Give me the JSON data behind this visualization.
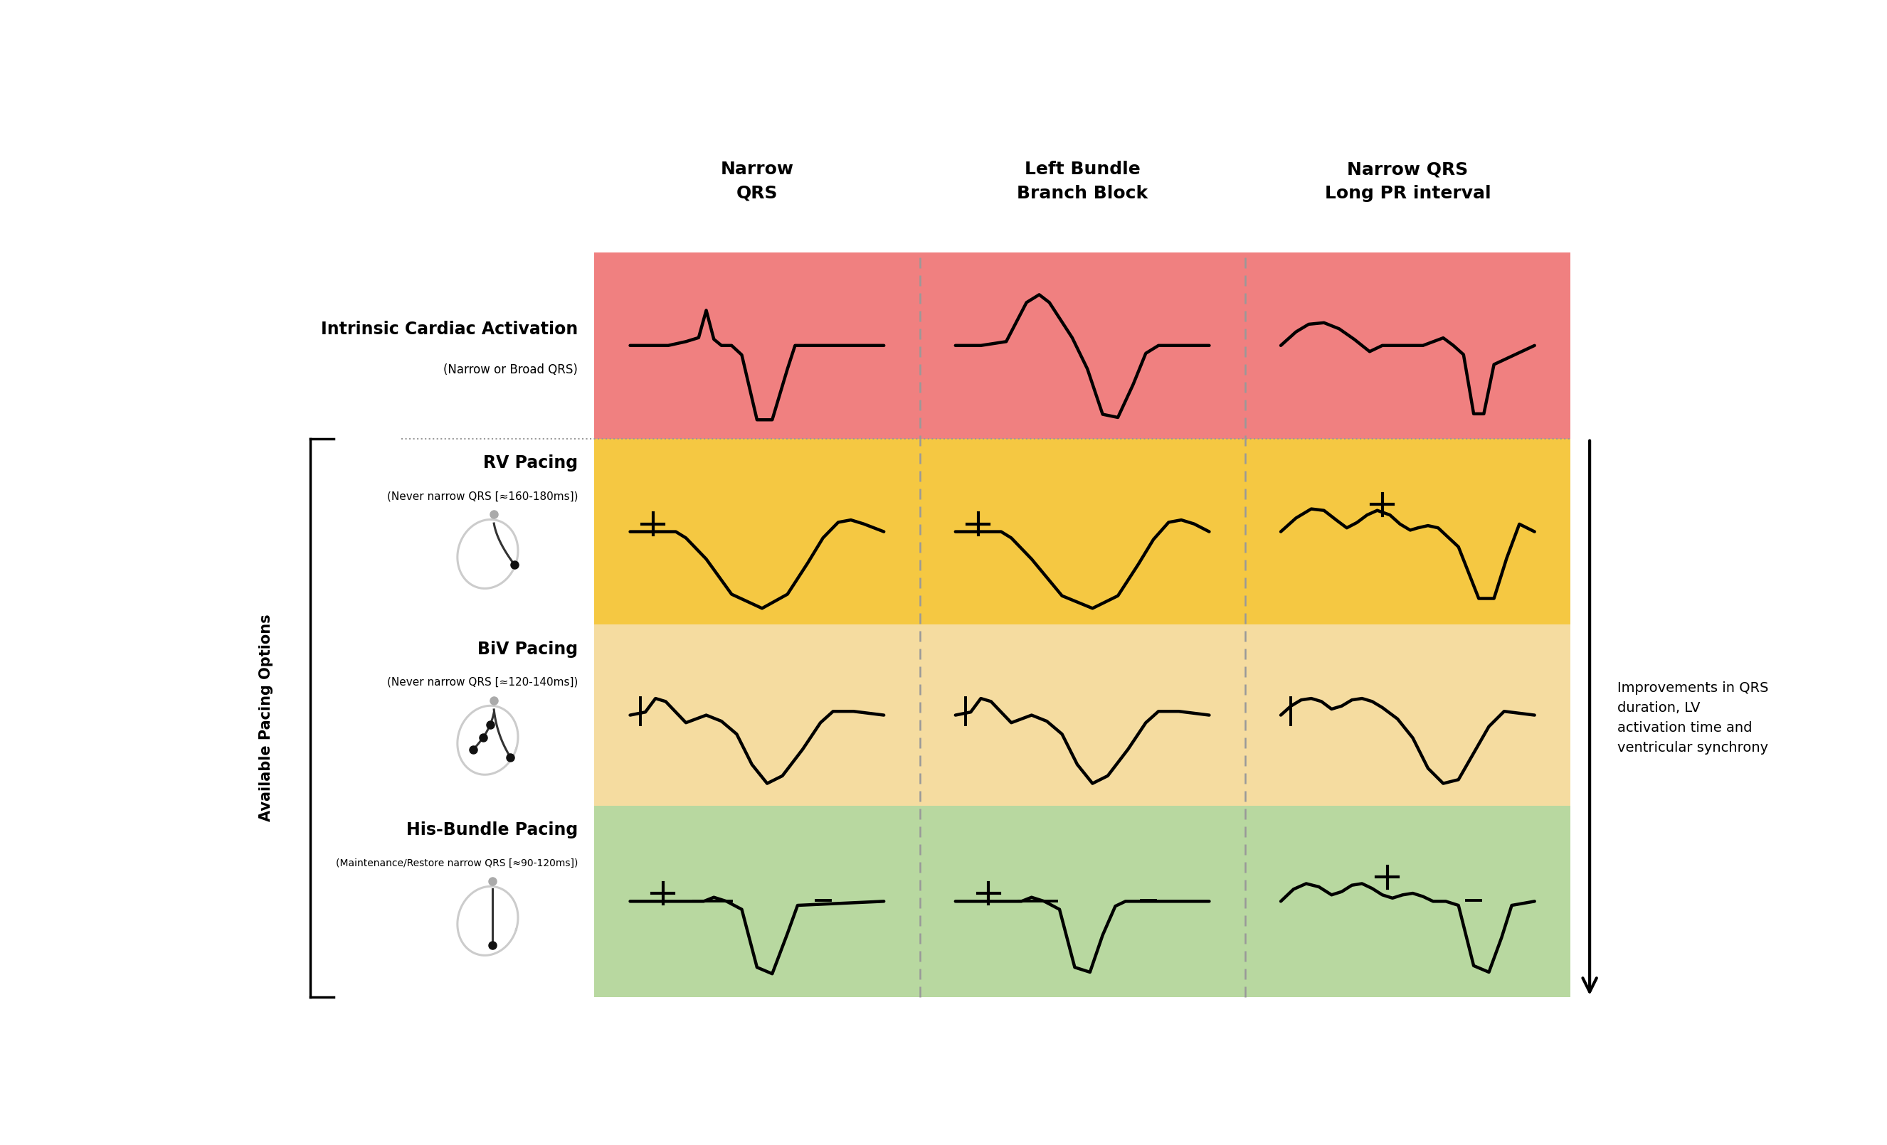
{
  "col_headers": [
    "Narrow\nQRS",
    "Left Bundle\nBranch Block",
    "Narrow QRS\nLong PR interval"
  ],
  "row_colors": [
    "#F08080",
    "#F5C842",
    "#F5DCA0",
    "#B8D8A0"
  ],
  "right_arrow_text": "Improvements in QRS\nduration, LV\nactivation time and\nventricular synchrony",
  "available_pacing_label": "Available Pacing Options",
  "background_color": "#FFFFFF",
  "row0_title": "Intrinsic Cardiac Activation",
  "row0_sub": "(Narrow or Broad QRS)",
  "row1_title": "RV Pacing",
  "row1_sub": "(Never narrow QRS [≈160-180ms])",
  "row2_title": "BiV Pacing",
  "row2_sub": "(Never narrow QRS [≈120-140ms])",
  "row3_title": "His-Bundle Pacing",
  "row3_sub": "(Maintenance/Restore narrow QRS [≈90-120ms])"
}
